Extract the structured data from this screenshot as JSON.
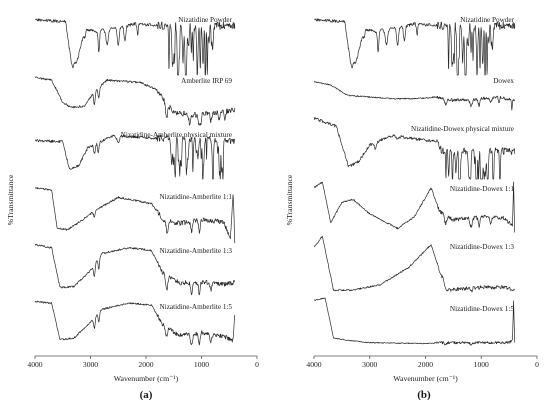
{
  "chart_data": [
    {
      "type": "line",
      "panel_label": "(a)",
      "xlabel": "Wavenumber (cm⁻¹)",
      "ylabel": "%Transmittance",
      "xlim": [
        4000,
        0
      ],
      "x_ticks": [
        "4000",
        "3000",
        "2000",
        "1000",
        "0"
      ],
      "series": [
        {
          "name": "Nizatidine Powder"
        },
        {
          "name": "Amberlite IRP 69"
        },
        {
          "name": "Nizatidine-Amberlite physical mixture"
        },
        {
          "name": "Nizatidine-Amberlite 1:1"
        },
        {
          "name": "Nizatidine-Amberlite 1:3"
        },
        {
          "name": "Nizatidine-Amberlite 1:5"
        }
      ]
    },
    {
      "type": "line",
      "panel_label": "(b)",
      "xlabel": "Wavenumber (cm⁻¹)",
      "ylabel": "%Transmittance",
      "xlim": [
        4000,
        0
      ],
      "x_ticks": [
        "4000",
        "3000",
        "2000",
        "1000",
        "0"
      ],
      "series": [
        {
          "name": "Nizatidine Powder"
        },
        {
          "name": "Dowex"
        },
        {
          "name": "Nizatidine-Dowex physical mixture"
        },
        {
          "name": "Nizatidine-Dowex 1:1"
        },
        {
          "name": "Nizatidine-Dowex 1:3"
        },
        {
          "name": "Nizatidine-Dowex 1:5"
        }
      ]
    }
  ]
}
